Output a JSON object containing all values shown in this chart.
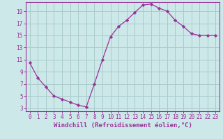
{
  "x": [
    0,
    1,
    2,
    3,
    4,
    5,
    6,
    7,
    8,
    9,
    10,
    11,
    12,
    13,
    14,
    15,
    16,
    17,
    18,
    19,
    20,
    21,
    22,
    23
  ],
  "y": [
    10.5,
    8.0,
    6.5,
    5.0,
    4.5,
    4.0,
    3.5,
    3.2,
    7.0,
    11.0,
    14.8,
    16.5,
    17.5,
    18.8,
    20.0,
    20.2,
    19.5,
    19.0,
    17.5,
    16.5,
    15.3,
    15.0,
    15.0,
    15.0
  ],
  "line_color": "#993399",
  "marker": "D",
  "marker_size": 2.2,
  "bg_color": "#cce8e8",
  "grid_color": "#a8cccc",
  "xlabel": "Windchill (Refroidissement éolien,°C)",
  "xlim_min": -0.5,
  "xlim_max": 23.5,
  "ylim_min": 2.5,
  "ylim_max": 20.5,
  "yticks": [
    3,
    5,
    7,
    9,
    11,
    13,
    15,
    17,
    19
  ],
  "xticks": [
    0,
    1,
    2,
    3,
    4,
    5,
    6,
    7,
    8,
    9,
    10,
    11,
    12,
    13,
    14,
    15,
    16,
    17,
    18,
    19,
    20,
    21,
    22,
    23
  ],
  "line_color_hex": "#7b2d8b",
  "tick_fontsize": 5.5,
  "xlabel_fontsize": 6.5
}
